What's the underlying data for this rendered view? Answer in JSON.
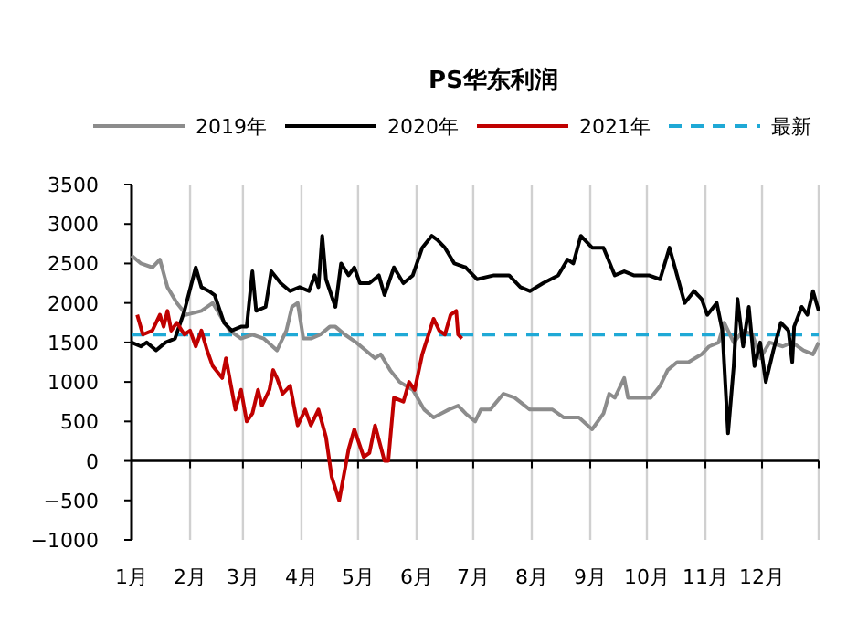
{
  "chart_data": {
    "type": "line",
    "title": "PS华东利润",
    "legend": "top",
    "grid": "x",
    "marker": "none",
    "line_style": "solid",
    "xlim": [
      "--01-01",
      "--12-31"
    ],
    "ylim": [
      -1000,
      3500
    ],
    "xticks": [
      {
        "value": "--01-01",
        "label": "1月"
      },
      {
        "value": "--02-01",
        "label": "2月"
      },
      {
        "value": "--03-01",
        "label": "3月"
      },
      {
        "value": "--04-01",
        "label": "4月"
      },
      {
        "value": "--05-01",
        "label": "5月"
      },
      {
        "value": "--06-01",
        "label": "6月"
      },
      {
        "value": "--07-01",
        "label": "7月"
      },
      {
        "value": "--08-01",
        "label": "8月"
      },
      {
        "value": "--09-01",
        "label": "9月"
      },
      {
        "value": "--10-01",
        "label": "10月"
      },
      {
        "value": "--11-01",
        "label": "11月"
      },
      {
        "value": "--12-01",
        "label": "12月"
      },
      {
        "value": "--12-31",
        "label": null
      }
    ],
    "yticks": [
      -1000,
      -500,
      0,
      500,
      1000,
      1500,
      2000,
      2500,
      3000,
      3500
    ],
    "series": [
      {
        "name": "2019年",
        "color": "#8c8c8c",
        "x": [
          "--01-01",
          "--01-06",
          "--01-12",
          "--01-16",
          "--01-20",
          "--01-25",
          "--01-30",
          "--02-07",
          "--02-13",
          "--02-18",
          "--02-22",
          "--02-28",
          "--03-06",
          "--03-12",
          "--03-19",
          "--03-24",
          "--03-27",
          "--03-30",
          "--04-02",
          "--04-06",
          "--04-11",
          "--04-16",
          "--04-19",
          "--04-24",
          "--04-30",
          "--05-05",
          "--05-10",
          "--05-13",
          "--05-18",
          "--05-23",
          "--05-30",
          "--06-05",
          "--06-10",
          "--06-14",
          "--06-18",
          "--06-23",
          "--06-27",
          "--07-02",
          "--07-05",
          "--07-10",
          "--07-17",
          "--07-23",
          "--07-31",
          "--08-07",
          "--08-12",
          "--08-18",
          "--08-26",
          "--09-02",
          "--09-08",
          "--09-11",
          "--09-14",
          "--09-19",
          "--09-21",
          "--09-27",
          "--10-03",
          "--10-08",
          "--10-12",
          "--10-17",
          "--10-23",
          "--10-30",
          "--11-03",
          "--11-08",
          "--11-11",
          "--11-16",
          "--11-21",
          "--11-26",
          "--11-30",
          "--12-05",
          "--12-12",
          "--12-17",
          "--12-23",
          "--12-28",
          "--12-31"
        ],
        "values": [
          2600,
          2500,
          2450,
          2550,
          2200,
          2000,
          1850,
          1900,
          2000,
          1800,
          1650,
          1550,
          1600,
          1550,
          1400,
          1650,
          1950,
          2000,
          1550,
          1550,
          1600,
          1700,
          1700,
          1600,
          1500,
          1400,
          1300,
          1350,
          1150,
          1000,
          900,
          650,
          550,
          600,
          650,
          700,
          600,
          500,
          650,
          650,
          850,
          800,
          650,
          650,
          650,
          550,
          550,
          400,
          600,
          850,
          800,
          1050,
          800,
          800,
          800,
          950,
          1150,
          1250,
          1250,
          1350,
          1450,
          1500,
          1750,
          1500,
          1650,
          1600,
          1300,
          1500,
          1450,
          1500,
          1400,
          1350,
          1500
        ]
      },
      {
        "name": "2020年",
        "color": "#000000",
        "x": [
          "--01-01",
          "--01-06",
          "--01-09",
          "--01-14",
          "--01-19",
          "--01-24",
          "--01-29",
          "--02-04",
          "--02-07",
          "--02-11",
          "--02-14",
          "--02-19",
          "--02-23",
          "--02-28",
          "--03-03",
          "--03-06",
          "--03-08",
          "--03-13",
          "--03-16",
          "--03-21",
          "--03-26",
          "--03-31",
          "--04-05",
          "--04-08",
          "--04-10",
          "--04-12",
          "--04-14",
          "--04-19",
          "--04-22",
          "--04-26",
          "--04-29",
          "--05-02",
          "--05-07",
          "--05-12",
          "--05-15",
          "--05-20",
          "--05-25",
          "--05-30",
          "--06-04",
          "--06-09",
          "--06-12",
          "--06-16",
          "--06-21",
          "--06-27",
          "--07-03",
          "--07-12",
          "--07-20",
          "--07-26",
          "--07-31",
          "--08-07",
          "--08-15",
          "--08-20",
          "--08-23",
          "--08-27",
          "--09-02",
          "--09-08",
          "--09-14",
          "--09-19",
          "--09-24",
          "--10-02",
          "--10-08",
          "--10-13",
          "--10-17",
          "--10-21",
          "--10-26",
          "--10-30",
          "--11-02",
          "--11-07",
          "--11-10",
          "--11-13",
          "--11-16",
          "--11-18",
          "--11-21",
          "--11-24",
          "--11-27",
          "--11-30",
          "--12-03",
          "--12-07",
          "--12-11",
          "--12-15",
          "--12-17",
          "--12-18",
          "--12-22",
          "--12-25",
          "--12-28",
          "--12-31"
        ],
        "values": [
          1500,
          1450,
          1500,
          1400,
          1500,
          1550,
          1900,
          2450,
          2200,
          2150,
          2100,
          1750,
          1650,
          1700,
          1700,
          2400,
          1900,
          1950,
          2400,
          2250,
          2150,
          2200,
          2150,
          2350,
          2200,
          2850,
          2300,
          1950,
          2500,
          2350,
          2450,
          2250,
          2250,
          2350,
          2100,
          2450,
          2250,
          2350,
          2700,
          2850,
          2800,
          2700,
          2500,
          2450,
          2300,
          2350,
          2350,
          2200,
          2150,
          2250,
          2350,
          2550,
          2500,
          2850,
          2700,
          2700,
          2350,
          2400,
          2350,
          2350,
          2300,
          2700,
          2350,
          2000,
          2150,
          2050,
          1850,
          2000,
          1650,
          350,
          1200,
          2050,
          1450,
          1950,
          1200,
          1500,
          1000,
          1400,
          1750,
          1650,
          1250,
          1700,
          1950,
          1850,
          2150,
          1900
        ]
      },
      {
        "name": "2021年",
        "color": "#c00000",
        "x": [
          "--01-04",
          "--01-07",
          "--01-12",
          "--01-16",
          "--01-18",
          "--01-20",
          "--01-22",
          "--01-25",
          "--01-29",
          "--02-01",
          "--02-04",
          "--02-07",
          "--02-10",
          "--02-13",
          "--02-18",
          "--02-20",
          "--02-25",
          "--02-28",
          "--03-03",
          "--03-06",
          "--03-09",
          "--03-11",
          "--03-15",
          "--03-17",
          "--03-19",
          "--03-22",
          "--03-26",
          "--03-30",
          "--04-03",
          "--04-06",
          "--04-10",
          "--04-14",
          "--04-17",
          "--04-21",
          "--04-26",
          "--04-29",
          "--05-04",
          "--05-07",
          "--05-10",
          "--05-15",
          "--05-17",
          "--05-20",
          "--05-25",
          "--05-28",
          "--05-31",
          "--06-04",
          "--06-10",
          "--06-13",
          "--06-16",
          "--06-19",
          "--06-22",
          "--06-23",
          "--06-25"
        ],
        "values": [
          1850,
          1600,
          1650,
          1850,
          1700,
          1900,
          1650,
          1750,
          1600,
          1650,
          1450,
          1650,
          1400,
          1200,
          1050,
          1300,
          650,
          900,
          500,
          600,
          900,
          700,
          900,
          1150,
          1050,
          850,
          950,
          450,
          650,
          450,
          650,
          300,
          -200,
          -500,
          150,
          400,
          50,
          100,
          450,
          0,
          0,
          800,
          750,
          1000,
          900,
          1350,
          1800,
          1650,
          1600,
          1850,
          1900,
          1600,
          1550
        ]
      }
    ],
    "ref_lines": [
      {
        "axis": "y",
        "value": 1600,
        "label": "最新",
        "color": "#1fa9d6",
        "line_style": "dashed"
      }
    ]
  }
}
